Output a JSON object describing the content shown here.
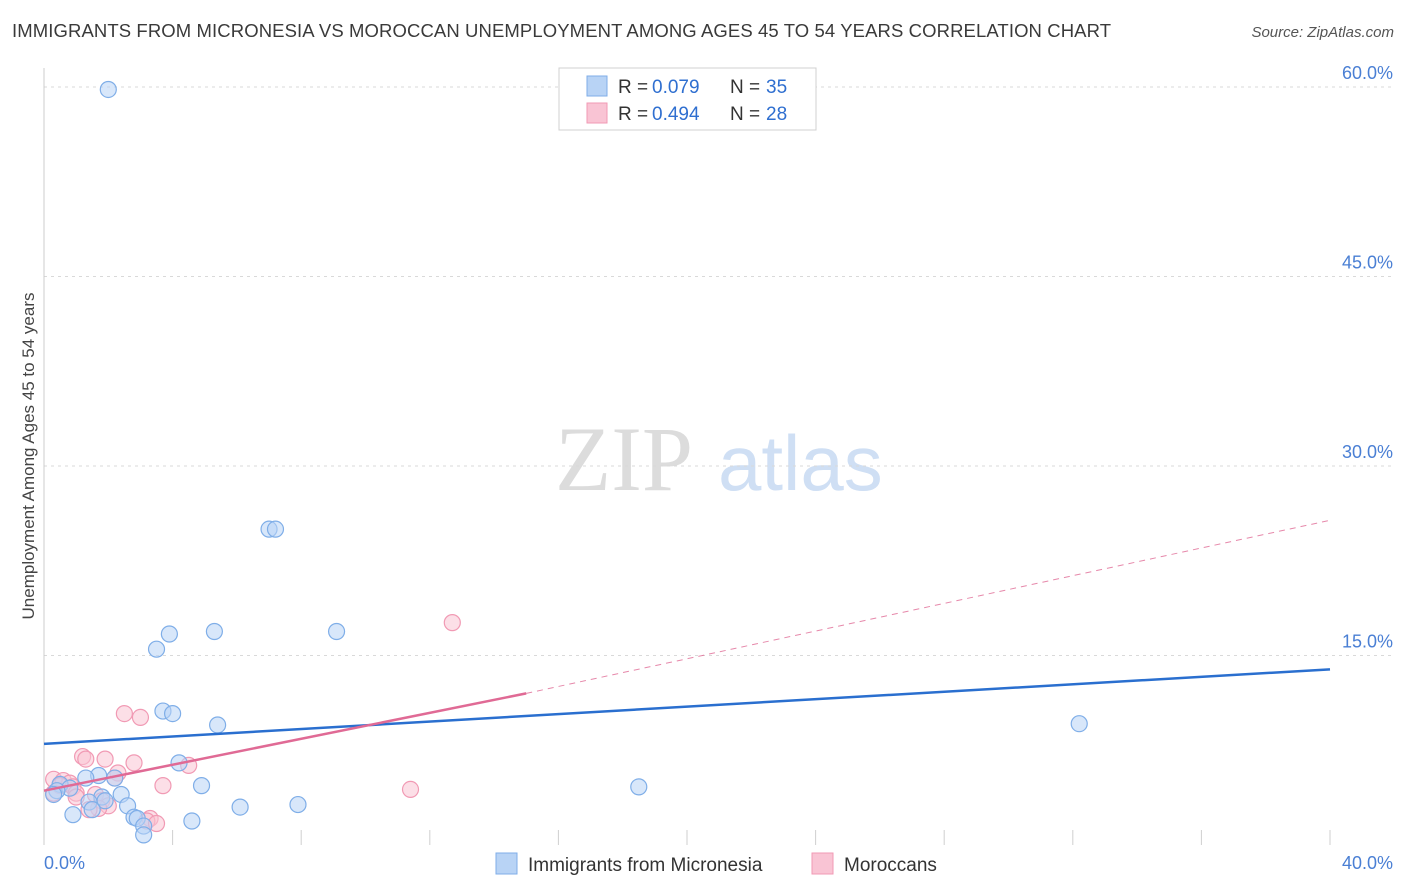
{
  "title": "IMMIGRANTS FROM MICRONESIA VS MOROCCAN UNEMPLOYMENT AMONG AGES 45 TO 54 YEARS CORRELATION CHART",
  "source": "Source: ZipAtlas.com",
  "watermark": {
    "zip": "ZIP",
    "atlas": "atlas"
  },
  "colors": {
    "blue_fill": "#b8d3f5",
    "blue_stroke": "#7faee8",
    "blue_line": "#2a6fcf",
    "pink_fill": "#f9c4d4",
    "pink_stroke": "#f19ab4",
    "pink_line": "#e06a95",
    "grid": "#d9d9d9",
    "axis_text": "#4a7fd4"
  },
  "legend": {
    "rows": [
      {
        "r_label": "R = ",
        "r_value": "0.079",
        "n_label": "N = ",
        "n_value": "35",
        "series": "blue"
      },
      {
        "r_label": "R = ",
        "r_value": "0.494",
        "n_label": "N = ",
        "n_value": "28",
        "series": "pink"
      }
    ]
  },
  "chart_data": {
    "type": "scatter",
    "title": "IMMIGRANTS FROM MICRONESIA VS MOROCCAN UNEMPLOYMENT AMONG AGES 45 TO 54 YEARS CORRELATION CHART",
    "xlabel": "",
    "ylabel": "Unemployment Among Ages 45 to 54 years",
    "xlim": [
      0,
      40
    ],
    "ylim": [
      0,
      61.5
    ],
    "x_tick_labels": [
      "0.0%",
      "40.0%"
    ],
    "y_ticks": [
      15,
      30,
      45,
      60
    ],
    "y_tick_labels": [
      "15.0%",
      "30.0%",
      "45.0%",
      "60.0%"
    ],
    "x_gridlines": [
      0,
      4,
      8,
      12,
      16,
      20,
      24,
      28,
      32,
      36,
      40
    ],
    "series": [
      {
        "name": "Immigrants from Micronesia",
        "color": "blue",
        "points": [
          [
            2.0,
            59.8
          ],
          [
            7.0,
            25.0
          ],
          [
            7.2,
            25.0
          ],
          [
            3.9,
            16.7
          ],
          [
            5.3,
            16.9
          ],
          [
            9.1,
            16.9
          ],
          [
            3.5,
            15.5
          ],
          [
            3.7,
            10.6
          ],
          [
            4.0,
            10.4
          ],
          [
            5.4,
            9.5
          ],
          [
            32.2,
            9.6
          ],
          [
            4.2,
            6.5
          ],
          [
            1.7,
            5.5
          ],
          [
            2.2,
            5.3
          ],
          [
            1.3,
            5.3
          ],
          [
            0.5,
            4.8
          ],
          [
            0.8,
            4.5
          ],
          [
            0.4,
            4.3
          ],
          [
            0.3,
            4.0
          ],
          [
            4.9,
            4.7
          ],
          [
            18.5,
            4.6
          ],
          [
            2.4,
            4.0
          ],
          [
            1.8,
            3.8
          ],
          [
            1.9,
            3.5
          ],
          [
            1.4,
            3.4
          ],
          [
            2.6,
            3.1
          ],
          [
            6.1,
            3.0
          ],
          [
            7.9,
            3.2
          ],
          [
            1.5,
            2.8
          ],
          [
            0.9,
            2.4
          ],
          [
            2.8,
            2.2
          ],
          [
            2.9,
            2.1
          ],
          [
            4.6,
            1.9
          ],
          [
            3.1,
            1.5
          ],
          [
            3.1,
            0.8
          ]
        ]
      },
      {
        "name": "Moroccans",
        "color": "pink",
        "points": [
          [
            12.7,
            17.6
          ],
          [
            2.5,
            10.4
          ],
          [
            3.0,
            10.1
          ],
          [
            1.2,
            7.0
          ],
          [
            1.3,
            6.8
          ],
          [
            1.9,
            6.8
          ],
          [
            2.8,
            6.5
          ],
          [
            4.5,
            6.3
          ],
          [
            2.3,
            5.7
          ],
          [
            2.2,
            5.3
          ],
          [
            0.3,
            5.2
          ],
          [
            0.6,
            5.1
          ],
          [
            0.8,
            4.9
          ],
          [
            0.5,
            4.7
          ],
          [
            0.9,
            4.6
          ],
          [
            3.7,
            4.7
          ],
          [
            11.4,
            4.4
          ],
          [
            1.0,
            4.1
          ],
          [
            1.6,
            4.0
          ],
          [
            0.3,
            4.1
          ],
          [
            1.0,
            3.8
          ],
          [
            1.8,
            3.5
          ],
          [
            2.0,
            3.1
          ],
          [
            1.7,
            2.9
          ],
          [
            1.4,
            2.8
          ],
          [
            3.3,
            2.1
          ],
          [
            3.2,
            1.9
          ],
          [
            3.5,
            1.7
          ]
        ]
      }
    ],
    "trend_lines": [
      {
        "series": "Immigrants from Micronesia",
        "x": [
          0,
          40
        ],
        "y": [
          8.0,
          13.9
        ],
        "style": "solid"
      },
      {
        "series": "Moroccans",
        "x": [
          0,
          15
        ],
        "y": [
          4.3,
          12.0
        ],
        "style": "solid"
      },
      {
        "series": "Moroccans",
        "x": [
          15,
          40
        ],
        "y": [
          12.0,
          25.7
        ],
        "style": "dashed"
      }
    ],
    "legend_position": "top-center and bottom"
  },
  "bottom_legend": [
    {
      "label": "Immigrants from Micronesia",
      "series": "blue"
    },
    {
      "label": "Moroccans",
      "series": "pink"
    }
  ]
}
